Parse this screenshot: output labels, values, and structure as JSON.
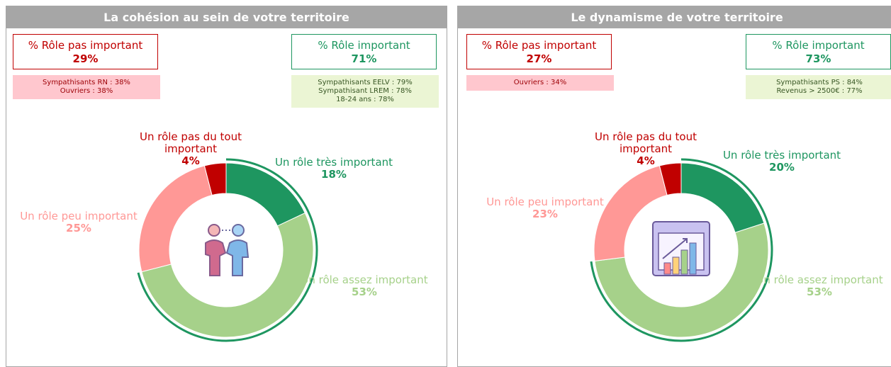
{
  "chart_data": [
    {
      "type": "pie",
      "donut": true,
      "title": "La cohésion au sein de votre territoire",
      "categories": [
        "Un rôle très important",
        "Un rôle assez important",
        "Un rôle peu important",
        "Un rôle pas du tout important"
      ],
      "values": [
        18,
        53,
        25,
        4
      ],
      "value_labels": [
        "18%",
        "53%",
        "25%",
        "4%"
      ],
      "colors": [
        "#1e9660",
        "#a6d18a",
        "#ff9896",
        "#c00000"
      ],
      "summary": {
        "negative": {
          "label": "% Rôle pas important",
          "value": "29%",
          "details": [
            "Sympathisants RN : 38%",
            "Ouvriers : 38%"
          ]
        },
        "positive": {
          "label": "% Rôle important",
          "value": "71%",
          "details": [
            "Sympathisants EELV : 79%",
            "Sympathisant LREM : 78%",
            "18-24 ans : 78%"
          ]
        }
      }
    },
    {
      "type": "pie",
      "donut": true,
      "title": "Le dynamisme de votre territoire",
      "categories": [
        "Un rôle très important",
        "Un rôle assez important",
        "Un rôle peu important",
        "Un rôle pas du tout important"
      ],
      "values": [
        20,
        53,
        23,
        4
      ],
      "value_labels": [
        "20%",
        "53%",
        "23%",
        "4%"
      ],
      "colors": [
        "#1e9660",
        "#a6d18a",
        "#ff9896",
        "#c00000"
      ],
      "summary": {
        "negative": {
          "label": "% Rôle pas important",
          "value": "27%",
          "details": [
            "Ouvriers : 34%"
          ]
        },
        "positive": {
          "label": "% Rôle important",
          "value": "73%",
          "details": [
            "Sympathisants PS : 84%",
            "Revenus > 2500€ : 77%"
          ]
        }
      }
    }
  ]
}
